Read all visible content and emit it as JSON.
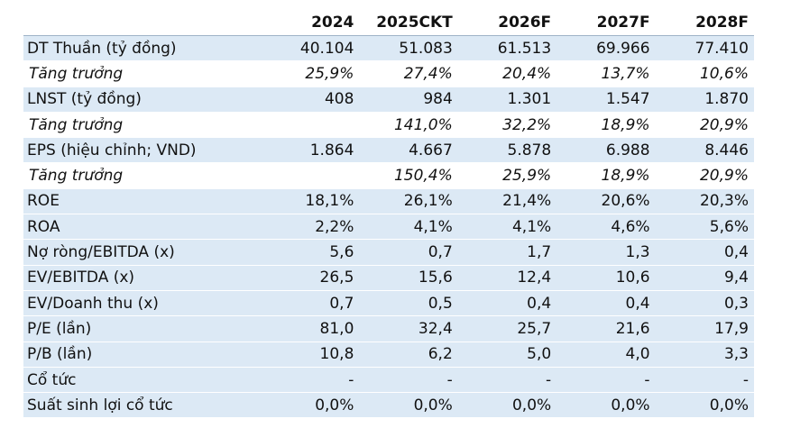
{
  "table": {
    "header": [
      "",
      "2024",
      "2025CKT",
      "2026F",
      "2027F",
      "2028F"
    ],
    "rows": [
      {
        "label": "DT Thuần (tỷ đồng)",
        "values": [
          "40.104",
          "51.083",
          "61.513",
          "69.966",
          "77.410"
        ],
        "style": "main"
      },
      {
        "label": "Tăng trưởng",
        "values": [
          "25,9%",
          "27,4%",
          "20,4%",
          "13,7%",
          "10,6%"
        ],
        "style": "sub"
      },
      {
        "label": "LNST (tỷ đồng)",
        "values": [
          "408",
          "984",
          "1.301",
          "1.547",
          "1.870"
        ],
        "style": "main"
      },
      {
        "label": "Tăng trưởng",
        "values": [
          "",
          "141,0%",
          "32,2%",
          "18,9%",
          "20,9%"
        ],
        "style": "sub"
      },
      {
        "label": "EPS (hiệu chỉnh; VND)",
        "values": [
          "1.864",
          "4.667",
          "5.878",
          "6.988",
          "8.446"
        ],
        "style": "main"
      },
      {
        "label": "Tăng trưởng",
        "values": [
          "",
          "150,4%",
          "25,9%",
          "18,9%",
          "20,9%"
        ],
        "style": "sub"
      },
      {
        "label": "ROE",
        "values": [
          "18,1%",
          "26,1%",
          "21,4%",
          "20,6%",
          "20,3%"
        ],
        "style": "main"
      },
      {
        "label": "ROA",
        "values": [
          "2,2%",
          "4,1%",
          "4,1%",
          "4,6%",
          "5,6%"
        ],
        "style": "main"
      },
      {
        "label": "Nợ ròng/EBITDA (x)",
        "values": [
          "5,6",
          "0,7",
          "1,7",
          "1,3",
          "0,4"
        ],
        "style": "main"
      },
      {
        "label": "EV/EBITDA (x)",
        "values": [
          "26,5",
          "15,6",
          "12,4",
          "10,6",
          "9,4"
        ],
        "style": "main"
      },
      {
        "label": "EV/Doanh thu (x)",
        "values": [
          "0,7",
          "0,5",
          "0,4",
          "0,4",
          "0,3"
        ],
        "style": "main"
      },
      {
        "label": "P/E (lần)",
        "values": [
          "81,0",
          "32,4",
          "25,7",
          "21,6",
          "17,9"
        ],
        "style": "main"
      },
      {
        "label": "P/B (lần)",
        "values": [
          "10,8",
          "6,2",
          "5,0",
          "4,0",
          "3,3"
        ],
        "style": "main"
      },
      {
        "label": "Cổ tức",
        "values": [
          "-",
          "-",
          "-",
          "-",
          "-"
        ],
        "style": "main"
      },
      {
        "label": "Suất sinh lợi cổ tức",
        "values": [
          "0,0%",
          "0,0%",
          "0,0%",
          "0,0%",
          "0,0%"
        ],
        "style": "main"
      }
    ]
  },
  "colors": {
    "row_fill": "#dce9f5",
    "sub_fill": "#ffffff",
    "divider": "#9fb3c8"
  }
}
